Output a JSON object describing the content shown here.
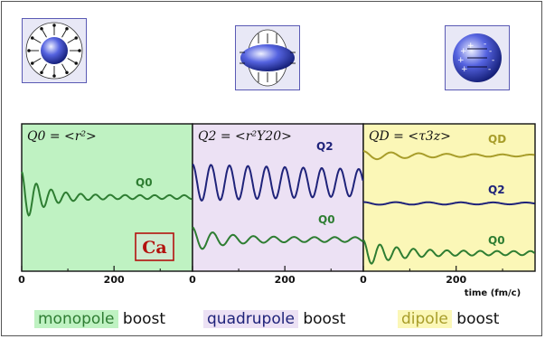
{
  "colors": {
    "monopole_bg": "#bff2c2",
    "quadrupole_bg": "#ece1f4",
    "dipole_bg": "#fbf7b7",
    "green_curve": "#2e7d32",
    "navy_curve": "#1f237a",
    "olive_curve": "#a89d2a",
    "element_label": "#b3120e",
    "icon_box_bg": "#e8e8f6",
    "icon_box_border": "#5a5ab4"
  },
  "icons": [
    "monopole-nucleus-icon",
    "quadrupole-nucleus-icon",
    "dipole-nucleus-icon"
  ],
  "element_label": "Ca",
  "axis_unit_label": "time (fm/c)",
  "chart_data": [
    {
      "type": "line",
      "panel": "monopole",
      "title": "Q0 = <r²>",
      "xlabel": "",
      "xlim": [
        0,
        370
      ],
      "xticks": [
        0,
        200
      ],
      "xtick_labels": [
        "0",
        "200"
      ],
      "series": [
        {
          "name": "Q0",
          "color": "green",
          "baseline": 0,
          "amplitude": 1.0,
          "period_fm_c": 32,
          "decay_fm_c": 45,
          "residual_amplitude": 0.08
        }
      ]
    },
    {
      "type": "line",
      "panel": "quadrupole",
      "title": "Q2 = <r²Y20>",
      "xlabel": "",
      "xlim": [
        0,
        370
      ],
      "xticks": [
        0,
        200
      ],
      "xtick_labels": [
        "0",
        "200"
      ],
      "series": [
        {
          "name": "Q2",
          "color": "navy",
          "baseline": 2.3,
          "amplitude": 0.75,
          "period_fm_c": 40,
          "decay_fm_c": 1200,
          "residual_amplitude": 0.0
        },
        {
          "name": "Q0",
          "color": "green",
          "baseline": 0,
          "amplitude": 0.5,
          "period_fm_c": 44,
          "decay_fm_c": 60,
          "residual_amplitude": 0.12
        }
      ]
    },
    {
      "type": "line",
      "panel": "dipole",
      "title": "QD = <τ3z>",
      "xlabel": "time (fm/c)",
      "xlim": [
        0,
        370
      ],
      "xticks": [
        0,
        200
      ],
      "xtick_labels": [
        "0",
        "200"
      ],
      "series": [
        {
          "name": "QD",
          "color": "olive",
          "baseline": 2.7,
          "amplitude": 0.3,
          "period_fm_c": 60,
          "decay_fm_c": 140,
          "residual_amplitude": 0.05
        },
        {
          "name": "Q2",
          "color": "navy",
          "baseline": 1.5,
          "amplitude": 0.15,
          "period_fm_c": 70,
          "decay_fm_c": 900,
          "residual_amplitude": 0.0
        },
        {
          "name": "Q0",
          "color": "green",
          "baseline": 0,
          "amplitude": 0.55,
          "period_fm_c": 36,
          "decay_fm_c": 70,
          "residual_amplitude": 0.1
        }
      ]
    }
  ],
  "legend": [
    {
      "highlight": "monopole",
      "word": "boost",
      "bg": "#bff2c2",
      "color": "#2e7d32"
    },
    {
      "highlight": "quadrupole",
      "word": "boost",
      "bg": "#ece1f4",
      "color": "#1f237a"
    },
    {
      "highlight": "dipole",
      "word": "boost",
      "bg": "#fbf7b7",
      "color": "#a89d2a"
    }
  ]
}
